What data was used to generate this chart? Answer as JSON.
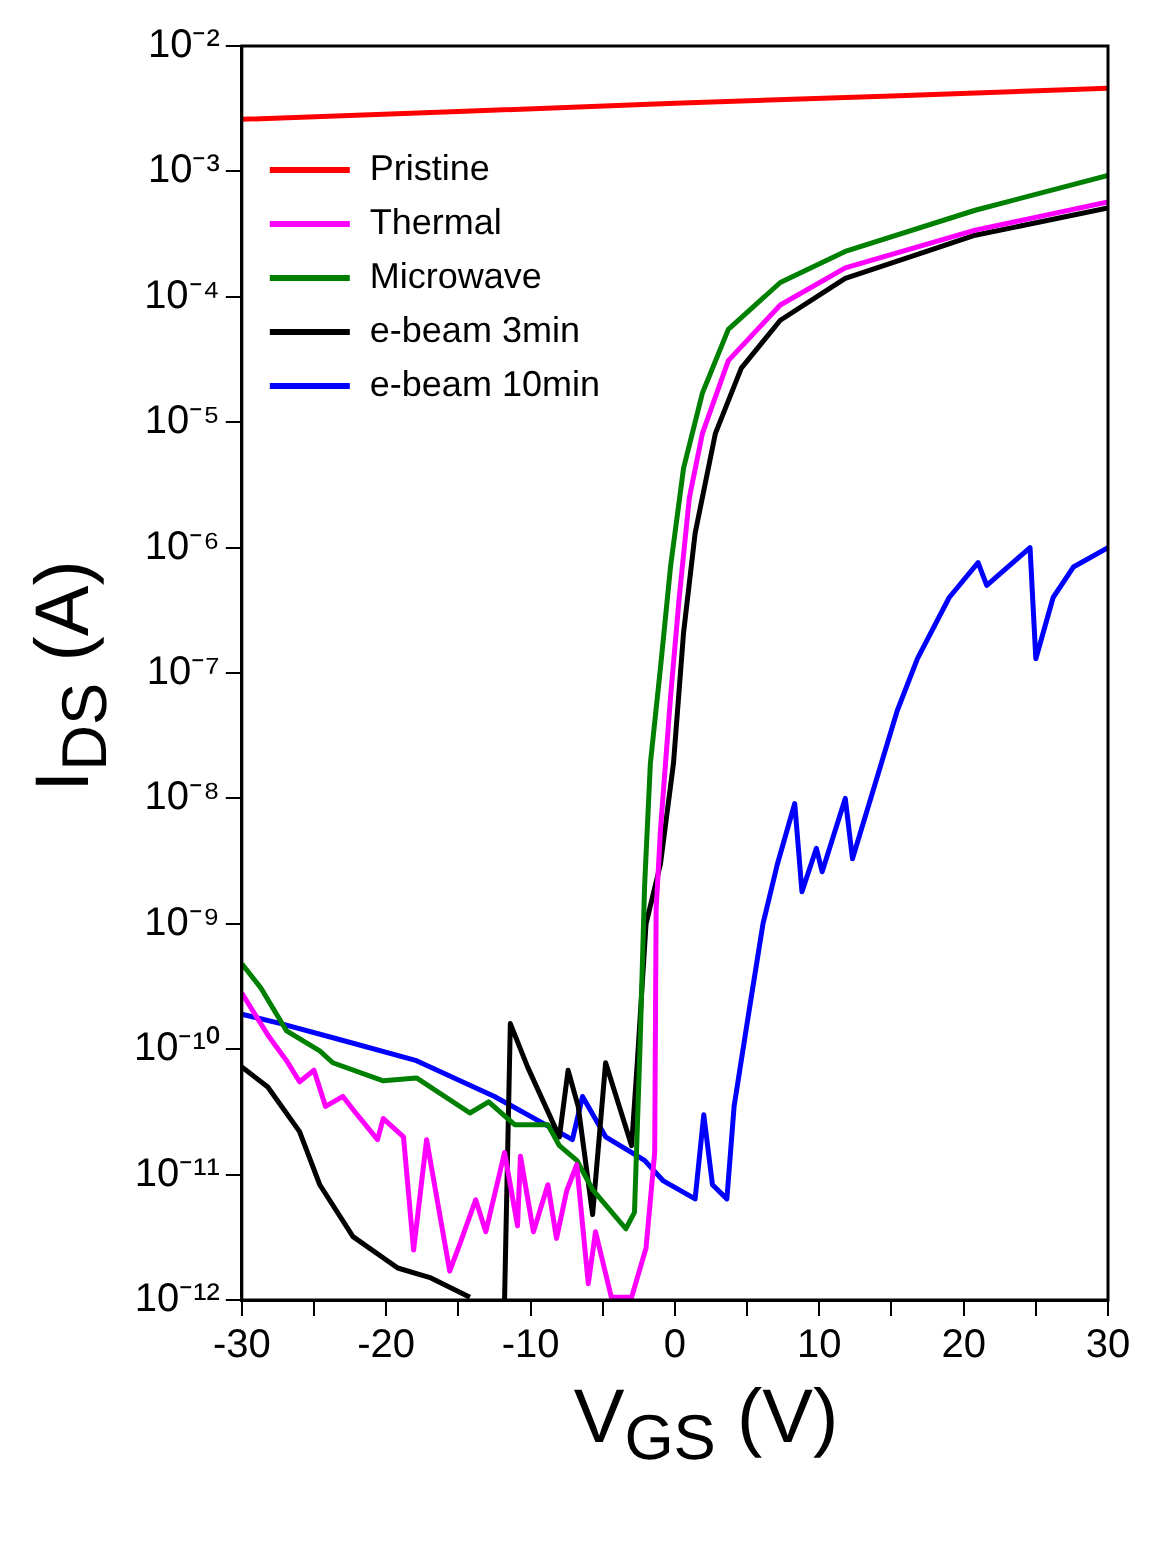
{
  "chart_data": {
    "type": "line",
    "xlabel": "V$_{GS}$ (V)",
    "ylabel": "I$_{DS}$ (A)",
    "log": "y",
    "grid": false,
    "legend": "top left",
    "marker": "none",
    "line_style": "solid",
    "xlim": [
      -30,
      30
    ],
    "xticks": [
      -30,
      {
        "value": -25,
        "label": null
      },
      -20,
      {
        "value": -15,
        "label": null
      },
      -10,
      {
        "value": -5,
        "label": null
      },
      0,
      {
        "value": 5,
        "label": null
      },
      10,
      {
        "value": 15,
        "label": null
      },
      20,
      {
        "value": 25,
        "label": null
      },
      30
    ],
    "ylim": [
      1e-12,
      0.01
    ],
    "yticks": [
      {
        "value": 1e-12,
        "label": "10⁻¹²"
      },
      {
        "value": 1e-11,
        "label": "10⁻¹¹"
      },
      {
        "value": 1e-10,
        "label": "10⁻¹⁰"
      },
      {
        "value": 1e-09,
        "label": "10⁻⁹"
      },
      {
        "value": 1e-08,
        "label": "10⁻⁸"
      },
      {
        "value": 1e-07,
        "label": "10⁻⁷"
      },
      {
        "value": 1e-06,
        "label": "10⁻⁶"
      },
      {
        "value": 1e-05,
        "label": "10⁻⁵"
      },
      {
        "value": 0.0001,
        "label": "10⁻⁴"
      },
      {
        "value": 0.001,
        "label": "10⁻³"
      },
      {
        "value": 0.01,
        "label": "10⁻²"
      }
    ],
    "series": [
      {
        "name": "Pristine",
        "color": "#ff0000",
        "x": [
          -30,
          -15,
          0,
          15,
          30
        ],
        "values": [
          0.0026,
          0.003,
          0.0035,
          0.004,
          0.0046
        ]
      },
      {
        "name": "Thermal",
        "color": "#ff00ff",
        "x": [
          -30,
          -28.2,
          -26.9,
          -26,
          -25,
          -24.2,
          -23,
          -22.2,
          -20.6,
          -20.2,
          -18.8,
          -18.1,
          -17.2,
          -15.6,
          -14.8,
          -13.8,
          -13.1,
          -11.8,
          -10.9,
          -10.7,
          -9.8,
          -8.8,
          -8.2,
          -7.5,
          -6.8,
          -6,
          -5.5,
          -4.4,
          -3,
          -2,
          -1.4,
          -1.3,
          -1,
          -0.3,
          0.3,
          1,
          1.9,
          3.7,
          7.3,
          11.8,
          20.8,
          30
        ],
        "values": [
          2.8e-10,
          1.3e-10,
          8.1e-11,
          5.5e-11,
          6.8e-11,
          3.5e-11,
          4.2e-11,
          3.2e-11,
          1.9e-11,
          2.8e-11,
          2e-11,
          2.5e-12,
          1.9e-11,
          1.7e-12,
          3e-12,
          6.3e-12,
          3.5e-12,
          1.5e-11,
          3.9e-12,
          1.4e-11,
          3.5e-12,
          8.3e-12,
          3.1e-12,
          7.4e-12,
          1.2e-11,
          1.35e-12,
          3.5e-12,
          1.05e-12,
          1.05e-12,
          2.6e-12,
          1.5e-11,
          1.3e-09,
          5.6e-09,
          6.5e-08,
          4e-07,
          2.5e-06,
          8.1e-06,
          3.1e-05,
          8.6e-05,
          0.00017,
          0.00034,
          0.00057
        ]
      },
      {
        "name": "Microwave",
        "color": "#008000",
        "x": [
          -30,
          -28.7,
          -26.9,
          -24.6,
          -23.7,
          -20.2,
          -17.9,
          -14.2,
          -12.9,
          -11.1,
          -8.8,
          -8,
          -6.8,
          -5.7,
          -3.4,
          -2.8,
          -2.4,
          -2.1,
          -1.7,
          -1,
          -0.3,
          0.6,
          1.9,
          3.7,
          7.3,
          11.8,
          20.8,
          30
        ],
        "values": [
          4.8e-10,
          3.1e-10,
          1.4e-10,
          9.7e-11,
          7.8e-11,
          5.6e-11,
          5.9e-11,
          3.1e-11,
          3.8e-11,
          2.5e-11,
          2.5e-11,
          1.7e-11,
          1.3e-11,
          7.6e-12,
          3.7e-12,
          5e-12,
          1.2e-10,
          2e-09,
          1.9e-08,
          1.1e-07,
          7.1e-07,
          4.3e-06,
          1.7e-05,
          5.5e-05,
          0.00013,
          0.00023,
          0.00049,
          0.00093
        ]
      },
      {
        "name": "e-beam 3min",
        "color": "#000000",
        "x": [
          -30,
          -28.2,
          -26,
          -24.6,
          -22.3,
          -19.2,
          -16.9,
          -14.2,
          -13,
          -11.8,
          -11.4,
          -10.2,
          -8,
          -7.4,
          -6.7,
          -5.7,
          -4.8,
          -3,
          -2.6,
          -2,
          -1,
          -0.1,
          0.6,
          1.4,
          2.8,
          4.6,
          7.3,
          11.8,
          20.8,
          30
        ],
        "values": [
          7.2e-11,
          5e-11,
          2.2e-11,
          8.3e-12,
          3.2e-12,
          1.8e-12,
          1.5e-12,
          1.05e-12,
          null,
          1e-12,
          1.6e-10,
          7.2e-11,
          2e-11,
          6.8e-11,
          3.5e-11,
          4.8e-12,
          7.8e-11,
          1.7e-11,
          8e-11,
          1e-09,
          3e-09,
          1.9e-08,
          2.1e-07,
          1.3e-06,
          8.1e-06,
          2.7e-05,
          6.5e-05,
          0.00014,
          0.00031,
          0.00051
        ]
      },
      {
        "name": "e-beam 10min",
        "color": "#0000ff",
        "x": [
          -30,
          -27.3,
          -23.3,
          -17.9,
          -12.5,
          -7.1,
          -6.4,
          -4.8,
          -2.1,
          -0.8,
          1.4,
          2,
          2.6,
          3.6,
          4.1,
          5.1,
          6.1,
          7.1,
          8.3,
          8.8,
          9.8,
          10.2,
          11.8,
          12.3,
          15.4,
          16.8,
          19,
          21,
          21.6,
          24.6,
          25,
          26.2,
          27.6,
          30
        ],
        "values": [
          1.9e-10,
          1.6e-10,
          1.2e-10,
          8.1e-11,
          4.2e-11,
          1.9e-11,
          4.2e-11,
          2e-11,
          1.3e-11,
          8.9e-12,
          6.4e-12,
          3e-11,
          8.3e-12,
          6.4e-12,
          3.5e-11,
          1.9e-10,
          1e-09,
          3e-09,
          9.1e-09,
          1.8e-09,
          4e-09,
          2.6e-09,
          1e-08,
          3.3e-09,
          5e-08,
          1.3e-07,
          4e-07,
          7.6e-07,
          5e-07,
          1e-06,
          1.3e-07,
          4e-07,
          7e-07,
          1e-06
        ]
      }
    ]
  }
}
